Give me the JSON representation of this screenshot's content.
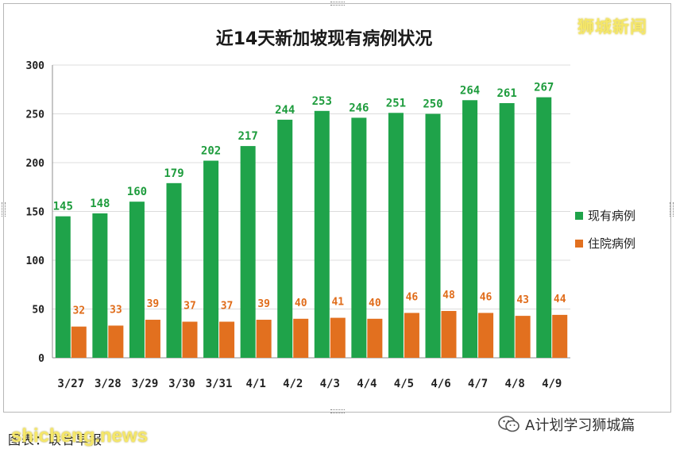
{
  "watermark_top": "狮城新闻",
  "footer": {
    "source": "图表：联合早报",
    "watermark": "shicheng.news",
    "wechat_account": "A计划学习狮城篇"
  },
  "colors": {
    "green": "#1fa34a",
    "orange": "#e2701f",
    "grid": "#dcdcdc"
  },
  "chart_data": {
    "type": "bar",
    "title": "近14天新加坡现有病例状况",
    "categories": [
      "3/27",
      "3/28",
      "3/29",
      "3/30",
      "3/31",
      "4/1",
      "4/2",
      "4/3",
      "4/4",
      "4/5",
      "4/6",
      "4/7",
      "4/8",
      "4/9"
    ],
    "series": [
      {
        "name": "现有病例",
        "color": "#1fa34a",
        "values": [
          145,
          148,
          160,
          179,
          202,
          217,
          244,
          253,
          246,
          251,
          250,
          264,
          261,
          267
        ]
      },
      {
        "name": "住院病例",
        "color": "#e2701f",
        "values": [
          32,
          33,
          39,
          37,
          37,
          39,
          40,
          41,
          40,
          46,
          48,
          46,
          43,
          44
        ]
      }
    ],
    "ylim": [
      0,
      300
    ],
    "yticks": [
      0,
      50,
      100,
      150,
      200,
      250,
      300
    ],
    "grid": true,
    "legend": "right"
  }
}
